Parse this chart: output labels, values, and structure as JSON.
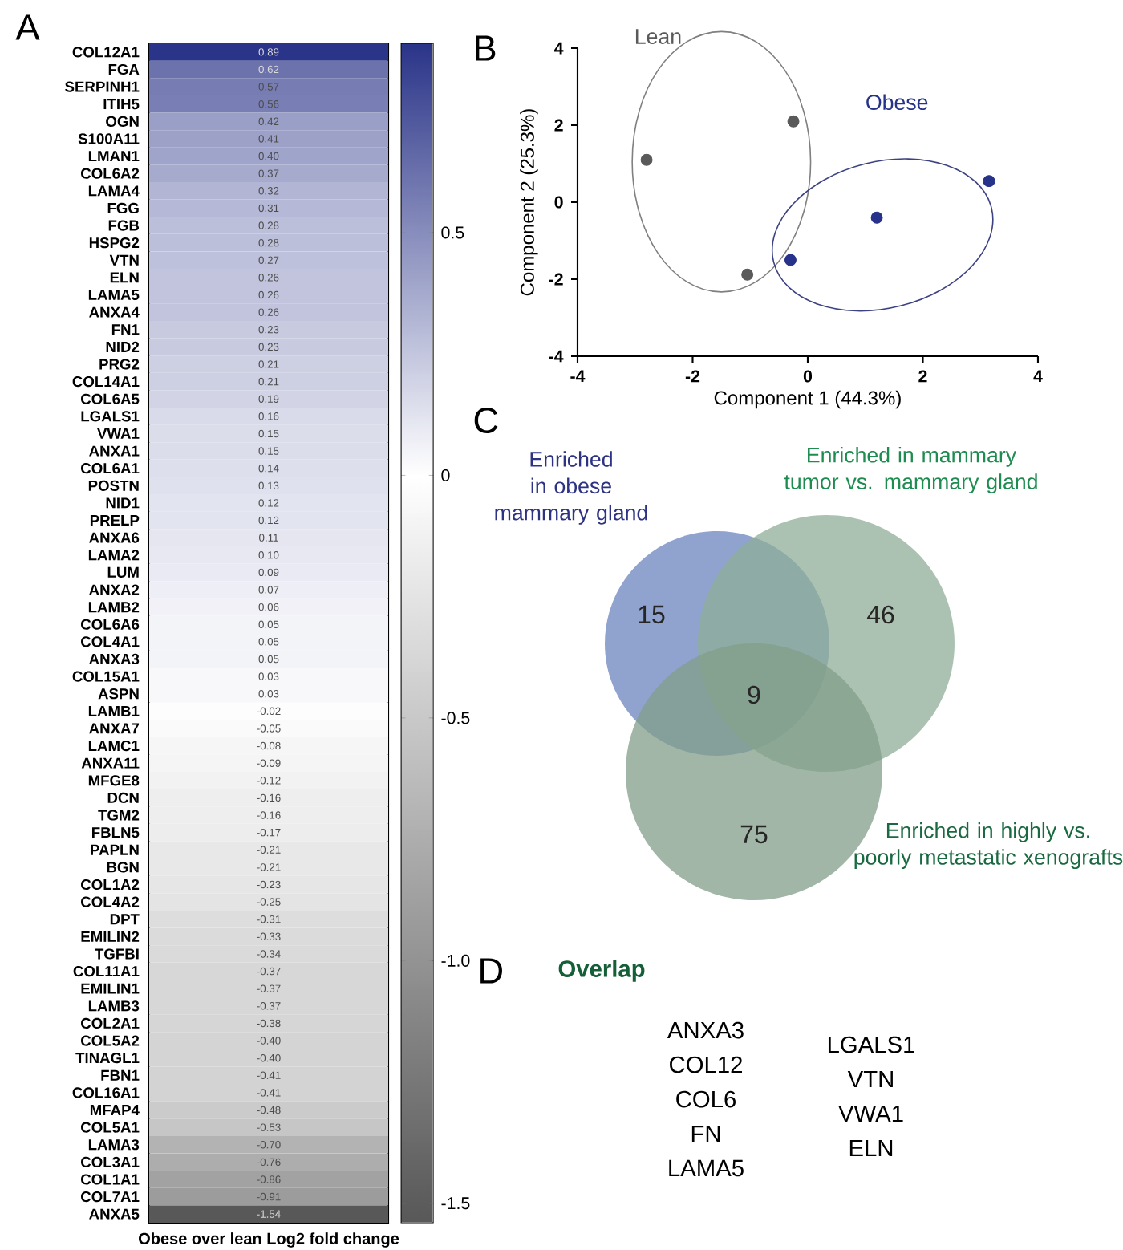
{
  "chart_data": [
    {
      "type": "heatmap",
      "annotations": [
        "A"
      ],
      "xlabel": "Obese over lean Log2 fold change",
      "categories": [
        null
      ],
      "y_categories": [
        "COL12A1",
        "FGA",
        "SERPINH1",
        "ITIH5",
        "OGN",
        "S100A11",
        "LMAN1",
        "COL6A2",
        "LAMA4",
        "FGG",
        "FGB",
        "HSPG2",
        "VTN",
        "ELN",
        "LAMA5",
        "ANXA4",
        "FN1",
        "NID2",
        "PRG2",
        "COL14A1",
        "COL6A5",
        "LGALS1",
        "VWA1",
        "ANXA1",
        "COL6A1",
        "POSTN",
        "NID1",
        "PRELP",
        "ANXA6",
        "LAMA2",
        "LUM",
        "ANXA2",
        "LAMB2",
        "COL6A6",
        "COL4A1",
        "ANXA3",
        "COL15A1",
        "ASPN",
        "LAMB1",
        "ANXA7",
        "LAMC1",
        "ANXA11",
        "MFGE8",
        "DCN",
        "TGM2",
        "FBLN5",
        "PAPLN",
        "BGN",
        "COL1A2",
        "COL4A2",
        "DPT",
        "EMILIN2",
        "TGFBI",
        "COL11A1",
        "EMILIN1",
        "LAMB3",
        "COL2A1",
        "COL5A2",
        "TINAGL1",
        "FBN1",
        "COL16A1",
        "MFAP4",
        "COL5A1",
        "LAMA3",
        "COL3A1",
        "COL1A1",
        "COL7A1",
        "ANXA5"
      ],
      "cells": [
        [
          0.89
        ],
        [
          0.62
        ],
        [
          0.57
        ],
        [
          0.56
        ],
        [
          0.42
        ],
        [
          0.41
        ],
        [
          0.4
        ],
        [
          0.37
        ],
        [
          0.32
        ],
        [
          0.31
        ],
        [
          0.28
        ],
        [
          0.28
        ],
        [
          0.27
        ],
        [
          0.26
        ],
        [
          0.26
        ],
        [
          0.26
        ],
        [
          0.23
        ],
        [
          0.23
        ],
        [
          0.21
        ],
        [
          0.21
        ],
        [
          0.19
        ],
        [
          0.16
        ],
        [
          0.15
        ],
        [
          0.15
        ],
        [
          0.14
        ],
        [
          0.13
        ],
        [
          0.12
        ],
        [
          0.12
        ],
        [
          0.11
        ],
        [
          0.1
        ],
        [
          0.09
        ],
        [
          0.07
        ],
        [
          0.06
        ],
        [
          0.05
        ],
        [
          0.05
        ],
        [
          0.05
        ],
        [
          0.03
        ],
        [
          0.03
        ],
        [
          -0.02
        ],
        [
          -0.05
        ],
        [
          -0.08
        ],
        [
          -0.09
        ],
        [
          -0.12
        ],
        [
          -0.16
        ],
        [
          -0.16
        ],
        [
          -0.17
        ],
        [
          -0.21
        ],
        [
          -0.21
        ],
        [
          -0.23
        ],
        [
          -0.25
        ],
        [
          -0.31
        ],
        [
          -0.33
        ],
        [
          -0.34
        ],
        [
          -0.37
        ],
        [
          -0.37
        ],
        [
          -0.37
        ],
        [
          -0.38
        ],
        [
          -0.4
        ],
        [
          -0.4
        ],
        [
          -0.41
        ],
        [
          -0.41
        ],
        [
          -0.48
        ],
        [
          -0.53
        ],
        [
          -0.7
        ],
        [
          -0.76
        ],
        [
          -0.86
        ],
        [
          -0.91
        ],
        [
          -1.54
        ]
      ],
      "cell_labels": [
        [
          "0.89"
        ],
        [
          "0.62"
        ],
        [
          "0.57"
        ],
        [
          "0.56"
        ],
        [
          "0.42"
        ],
        [
          "0.41"
        ],
        [
          "0.40"
        ],
        [
          "0.37"
        ],
        [
          "0.32"
        ],
        [
          "0.31"
        ],
        [
          "0.28"
        ],
        [
          "0.28"
        ],
        [
          "0.27"
        ],
        [
          "0.26"
        ],
        [
          "0.26"
        ],
        [
          "0.26"
        ],
        [
          "0.23"
        ],
        [
          "0.23"
        ],
        [
          "0.21"
        ],
        [
          "0.21"
        ],
        [
          "0.19"
        ],
        [
          "0.16"
        ],
        [
          "0.15"
        ],
        [
          "0.15"
        ],
        [
          "0.14"
        ],
        [
          "0.13"
        ],
        [
          "0.12"
        ],
        [
          "0.12"
        ],
        [
          "0.11"
        ],
        [
          "0.10"
        ],
        [
          "0.09"
        ],
        [
          "0.07"
        ],
        [
          "0.06"
        ],
        [
          "0.05"
        ],
        [
          "0.05"
        ],
        [
          "0.05"
        ],
        [
          "0.03"
        ],
        [
          "0.03"
        ],
        [
          "-0.02"
        ],
        [
          "-0.05"
        ],
        [
          "-0.08"
        ],
        [
          "-0.09"
        ],
        [
          "-0.12"
        ],
        [
          "-0.16"
        ],
        [
          "-0.16"
        ],
        [
          "-0.17"
        ],
        [
          "-0.21"
        ],
        [
          "-0.21"
        ],
        [
          "-0.23"
        ],
        [
          "-0.25"
        ],
        [
          "-0.31"
        ],
        [
          "-0.33"
        ],
        [
          "-0.34"
        ],
        [
          "-0.37"
        ],
        [
          "-0.37"
        ],
        [
          "-0.37"
        ],
        [
          "-0.38"
        ],
        [
          "-0.40"
        ],
        [
          "-0.40"
        ],
        [
          "-0.41"
        ],
        [
          "-0.41"
        ],
        [
          "-0.48"
        ],
        [
          "-0.53"
        ],
        [
          "-0.70"
        ],
        [
          "-0.76"
        ],
        [
          "-0.86"
        ],
        [
          "-0.91"
        ],
        [
          "-1.54"
        ]
      ],
      "clim": [
        -1.54,
        0.89
      ],
      "cticks": [
        0.5,
        0,
        -0.5,
        {
          "value": -1.0,
          "label": "-1.0"
        },
        -1.5
      ]
    },
    {
      "type": "scatter",
      "annotations": [
        "B"
      ],
      "xlabel": "Component 1 (44.3%)",
      "ylabel": "Component 2 (25.3%)",
      "xlim": [
        -4,
        4
      ],
      "ylim": [
        -4,
        4
      ],
      "xticks": [
        -4,
        -2,
        0,
        2,
        4
      ],
      "yticks": [
        -4,
        -2,
        0,
        2,
        4
      ],
      "marker": "circle",
      "series": [
        {
          "name": "Lean",
          "color": "#5a5a5a",
          "x": [
            -2.8,
            -0.25,
            -1.05
          ],
          "values": [
            1.1,
            2.1,
            -1.88
          ]
        },
        {
          "name": "Obese",
          "color": "#27338a",
          "x": [
            -0.3,
            1.2,
            3.15
          ],
          "values": [
            -1.5,
            -0.4,
            0.55
          ]
        }
      ]
    },
    {
      "type": "other",
      "annotations": [
        "C",
        "9"
      ],
      "data_labels": true,
      "categories": [
        "Enriched in obese mammary gland",
        "Enriched in mammary tumor vs. mammary gland",
        "Enriched in highly vs. poorly metastatic xenografts"
      ],
      "values": [
        15,
        46,
        75
      ],
      "colors": [
        "#6a84bd",
        "#8fae98",
        "#819d88"
      ]
    },
    {
      "type": "other",
      "title": "Overlap",
      "annotations": [
        "D",
        "ANXA3",
        "COL12",
        "COL6",
        "FN",
        "LAMA5",
        "LGALS1",
        "VTN",
        "VWA1",
        "ELN"
      ]
    }
  ]
}
